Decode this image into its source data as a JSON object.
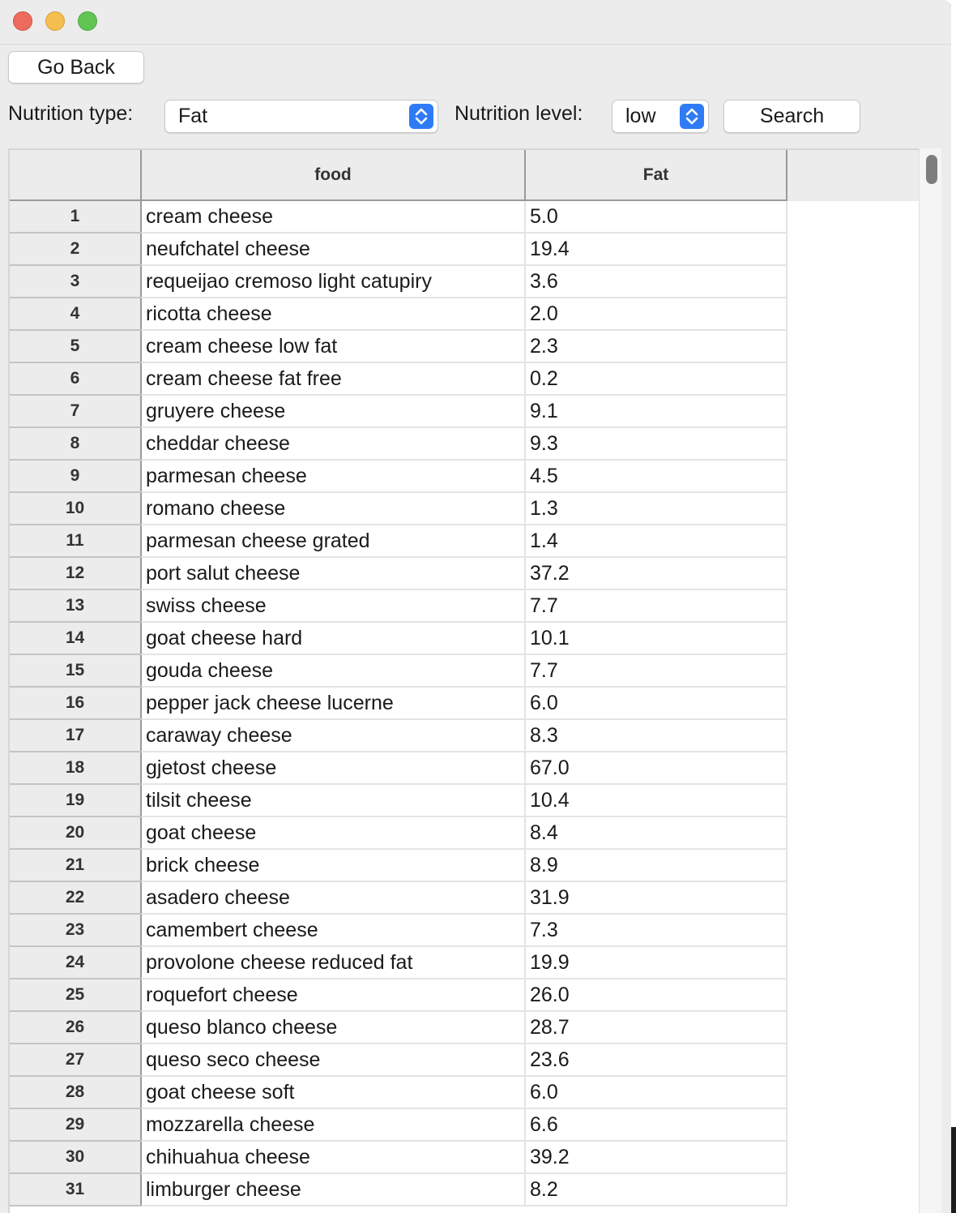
{
  "toolbar": {
    "go_back_label": "Go Back",
    "nutrition_type_label": "Nutrition type:",
    "nutrition_type_value": "Fat",
    "nutrition_level_label": "Nutrition level:",
    "nutrition_level_value": "low",
    "search_label": "Search"
  },
  "colors": {
    "close": "#ed6a5e",
    "minimize": "#f5bf4f",
    "maximize": "#61c554",
    "stepper_accent": "#2f7bf5"
  },
  "icons": {
    "close": "close-dot-icon",
    "minimize": "minimize-dot-icon",
    "maximize": "maximize-dot-icon",
    "stepper": "updown-chevron-icon"
  },
  "table": {
    "columns": [
      "",
      "food",
      "Fat"
    ],
    "rows": [
      {
        "index": "1",
        "food": "cream cheese",
        "fat": "5.0"
      },
      {
        "index": "2",
        "food": "neufchatel cheese",
        "fat": "19.4"
      },
      {
        "index": "3",
        "food": "requeijao cremoso light catupiry",
        "fat": "3.6"
      },
      {
        "index": "4",
        "food": "ricotta cheese",
        "fat": "2.0"
      },
      {
        "index": "5",
        "food": "cream cheese low fat",
        "fat": "2.3"
      },
      {
        "index": "6",
        "food": "cream cheese fat free",
        "fat": "0.2"
      },
      {
        "index": "7",
        "food": "gruyere cheese",
        "fat": "9.1"
      },
      {
        "index": "8",
        "food": "cheddar cheese",
        "fat": "9.3"
      },
      {
        "index": "9",
        "food": "parmesan cheese",
        "fat": "4.5"
      },
      {
        "index": "10",
        "food": "romano cheese",
        "fat": "1.3"
      },
      {
        "index": "11",
        "food": "parmesan cheese grated",
        "fat": "1.4"
      },
      {
        "index": "12",
        "food": "port salut cheese",
        "fat": "37.2"
      },
      {
        "index": "13",
        "food": "swiss cheese",
        "fat": "7.7"
      },
      {
        "index": "14",
        "food": "goat cheese hard",
        "fat": "10.1"
      },
      {
        "index": "15",
        "food": "gouda cheese",
        "fat": "7.7"
      },
      {
        "index": "16",
        "food": "pepper jack cheese lucerne",
        "fat": "6.0"
      },
      {
        "index": "17",
        "food": "caraway cheese",
        "fat": "8.3"
      },
      {
        "index": "18",
        "food": "gjetost cheese",
        "fat": "67.0"
      },
      {
        "index": "19",
        "food": "tilsit cheese",
        "fat": "10.4"
      },
      {
        "index": "20",
        "food": "goat cheese",
        "fat": "8.4"
      },
      {
        "index": "21",
        "food": "brick cheese",
        "fat": "8.9"
      },
      {
        "index": "22",
        "food": "asadero cheese",
        "fat": "31.9"
      },
      {
        "index": "23",
        "food": "camembert cheese",
        "fat": "7.3"
      },
      {
        "index": "24",
        "food": "provolone cheese reduced fat",
        "fat": "19.9"
      },
      {
        "index": "25",
        "food": "roquefort cheese",
        "fat": "26.0"
      },
      {
        "index": "26",
        "food": "queso blanco cheese",
        "fat": "28.7"
      },
      {
        "index": "27",
        "food": "queso seco cheese",
        "fat": "23.6"
      },
      {
        "index": "28",
        "food": "goat cheese soft",
        "fat": "6.0"
      },
      {
        "index": "29",
        "food": "mozzarella cheese",
        "fat": "6.6"
      },
      {
        "index": "30",
        "food": "chihuahua cheese",
        "fat": "39.2"
      },
      {
        "index": "31",
        "food": "limburger cheese",
        "fat": "8.2"
      }
    ]
  }
}
